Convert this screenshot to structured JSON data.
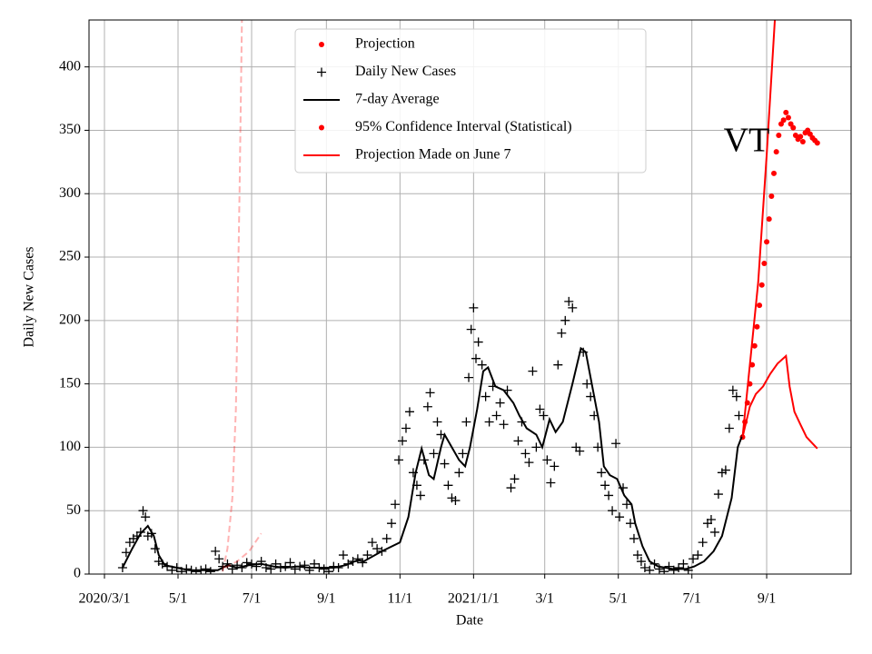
{
  "chart_data": {
    "type": "scatter",
    "annotation": "VT",
    "xlabel": "Date",
    "ylabel": "Daily New Cases",
    "xlim": [
      -12.8,
      619
    ],
    "ylim": [
      0,
      437
    ],
    "xticks": [
      {
        "value": 0,
        "label": "2020/3/1"
      },
      {
        "value": 61,
        "label": "5/1"
      },
      {
        "value": 122,
        "label": "7/1"
      },
      {
        "value": 184,
        "label": "9/1"
      },
      {
        "value": 245,
        "label": "11/1"
      },
      {
        "value": 306,
        "label": "2021/1/1"
      },
      {
        "value": 365,
        "label": "3/1"
      },
      {
        "value": 426,
        "label": "5/1"
      },
      {
        "value": 487,
        "label": "7/1"
      },
      {
        "value": 549,
        "label": "9/1"
      }
    ],
    "yticks": [
      0,
      50,
      100,
      150,
      200,
      250,
      300,
      350,
      400
    ],
    "grid": true,
    "legend": "upper center",
    "series": [
      {
        "name": "Projection",
        "color": "#ff0000",
        "marker": "dot",
        "x": [
          529,
          531,
          533,
          535,
          537,
          539,
          541,
          543,
          545,
          547,
          549,
          551,
          553,
          555,
          557,
          559,
          561,
          563,
          565,
          567,
          569,
          571,
          573,
          575,
          577,
          579,
          581,
          583,
          585,
          587,
          589,
          591
        ],
        "values": [
          108,
          120,
          135,
          150,
          165,
          180,
          195,
          212,
          228,
          245,
          262,
          280,
          298,
          316,
          333,
          346,
          355,
          358,
          364,
          360,
          355,
          352,
          346,
          343,
          345,
          341,
          348,
          350,
          347,
          344,
          342,
          340
        ]
      },
      {
        "name": "Daily New Cases",
        "color": "#000000",
        "marker": "plus",
        "x": [
          15,
          18,
          21,
          24,
          27,
          30,
          32,
          34,
          36,
          39,
          42,
          45,
          48,
          52,
          56,
          60,
          64,
          68,
          72,
          76,
          80,
          84,
          88,
          92,
          95,
          98,
          102,
          106,
          110,
          114,
          118,
          122,
          126,
          130,
          134,
          138,
          142,
          146,
          150,
          154,
          158,
          162,
          166,
          170,
          174,
          178,
          182,
          186,
          190,
          194,
          198,
          202,
          206,
          210,
          214,
          218,
          222,
          226,
          230,
          234,
          238,
          241,
          244,
          247,
          250,
          253,
          256,
          259,
          262,
          265,
          268,
          270,
          273,
          276,
          279,
          282,
          285,
          288,
          291,
          294,
          297,
          300,
          302,
          304,
          306,
          308,
          310,
          313,
          316,
          319,
          322,
          325,
          328,
          331,
          334,
          337,
          340,
          343,
          346,
          349,
          352,
          355,
          358,
          361,
          364,
          367,
          370,
          373,
          376,
          379,
          382,
          385,
          388,
          391,
          394,
          397,
          400,
          403,
          406,
          409,
          412,
          415,
          418,
          421,
          424,
          427,
          430,
          433,
          436,
          439,
          442,
          445,
          448,
          452,
          456,
          460,
          464,
          468,
          472,
          476,
          480,
          484,
          488,
          492,
          496,
          500,
          503,
          506,
          509,
          512,
          515,
          518,
          521,
          524,
          526
        ],
        "values": [
          5,
          17,
          25,
          28,
          30,
          33,
          50,
          45,
          30,
          32,
          20,
          10,
          8,
          6,
          3,
          5,
          2,
          4,
          3,
          2,
          3,
          4,
          2,
          18,
          12,
          6,
          8,
          4,
          7,
          5,
          9,
          8,
          6,
          10,
          5,
          4,
          8,
          5,
          6,
          9,
          4,
          6,
          7,
          3,
          8,
          5,
          4,
          2,
          6,
          5,
          15,
          8,
          10,
          12,
          9,
          15,
          25,
          20,
          18,
          28,
          40,
          55,
          90,
          105,
          115,
          128,
          80,
          70,
          62,
          90,
          132,
          143,
          95,
          120,
          110,
          87,
          70,
          60,
          58,
          80,
          95,
          120,
          155,
          193,
          210,
          170,
          183,
          165,
          140,
          120,
          148,
          125,
          135,
          118,
          145,
          68,
          75,
          105,
          120,
          95,
          88,
          160,
          100,
          130,
          125,
          90,
          72,
          85,
          165,
          190,
          200,
          215,
          210,
          100,
          97,
          175,
          150,
          140,
          125,
          100,
          80,
          70,
          62,
          50,
          103,
          45,
          68,
          55,
          40,
          28,
          15,
          10,
          5,
          3,
          8,
          4,
          2,
          6,
          3,
          5,
          8,
          3,
          12,
          15,
          25,
          40,
          43,
          33,
          63,
          80,
          82,
          115,
          145,
          140,
          125
        ]
      },
      {
        "name": "7-day Average",
        "color": "#000000",
        "marker": "line",
        "x": [
          15,
          23,
          30,
          36,
          41,
          45,
          50,
          60,
          70,
          80,
          90,
          94,
          102,
          110,
          120,
          130,
          140,
          150,
          160,
          170,
          180,
          190,
          200,
          210,
          215,
          230,
          245,
          252,
          258,
          263,
          269,
          273,
          279,
          282,
          288,
          294,
          299,
          303,
          309,
          314,
          318,
          324,
          331,
          339,
          344,
          350,
          358,
          363,
          369,
          374,
          380,
          388,
          395,
          399,
          404,
          410,
          414,
          419,
          425,
          431,
          437,
          440,
          446,
          452,
          459,
          471,
          482,
          489,
          497,
          505,
          512,
          520,
          525,
          529
        ],
        "values": [
          5,
          20,
          32,
          38,
          30,
          15,
          7,
          5,
          3,
          3,
          3,
          3,
          7,
          5,
          7,
          8,
          6,
          5,
          6,
          5,
          5,
          5,
          7,
          11,
          10,
          18,
          25,
          45,
          80,
          99,
          78,
          75,
          100,
          110,
          100,
          90,
          85,
          100,
          130,
          160,
          163,
          148,
          145,
          135,
          125,
          115,
          110,
          100,
          122,
          112,
          120,
          150,
          178,
          175,
          150,
          120,
          85,
          78,
          75,
          62,
          55,
          40,
          22,
          10,
          6,
          4,
          4,
          6,
          10,
          18,
          30,
          60,
          100,
          110
        ]
      },
      {
        "name": "95% Confidence Interval (Statistical)",
        "color": "#ff0000",
        "marker": "dot",
        "lines": [
          {
            "x": [
              529,
              542,
              549,
              556
            ],
            "values": [
              108,
              230,
              330,
              440
            ]
          },
          {
            "x": [
              529,
              535,
              540,
              546,
              552,
              558,
              565,
              568,
              572,
              577,
              582,
              591
            ],
            "values": [
              108,
              132,
              142,
              148,
              158,
              166,
              172,
              148,
              128,
              118,
              108,
              99
            ]
          }
        ]
      },
      {
        "name": "Projection Made on June 7",
        "color": "#ff0000",
        "marker": "line",
        "dashed": true,
        "alpha": 0.3,
        "lines": [
          {
            "x": [
              98,
              102,
              106,
              109,
              112,
              114
            ],
            "values": [
              2,
              20,
              60,
              130,
              300,
              440
            ]
          },
          {
            "x": [
              100,
              110,
              120,
              130
            ],
            "values": [
              5,
              10,
              18,
              32
            ]
          }
        ]
      }
    ]
  }
}
